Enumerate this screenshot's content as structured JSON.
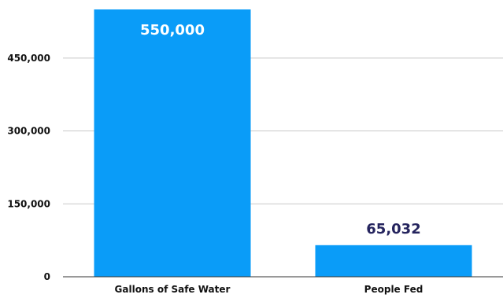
{
  "chart_data": {
    "type": "bar",
    "categories": [
      "Gallons of Safe Water",
      "People Fed"
    ],
    "values": [
      550000,
      65032
    ],
    "data_labels": [
      "550,000",
      "65,032"
    ],
    "y_ticks": [
      0,
      150000,
      300000,
      450000
    ],
    "y_tick_labels": [
      "0",
      "150,000",
      "300,000",
      "450,000"
    ],
    "ylim": [
      0,
      550000
    ],
    "grid": true,
    "bar_color": "#0a9cf8",
    "label_inside_color": "#ffffff",
    "label_outside_color": "#25245e",
    "title": "",
    "xlabel": "",
    "ylabel": ""
  }
}
